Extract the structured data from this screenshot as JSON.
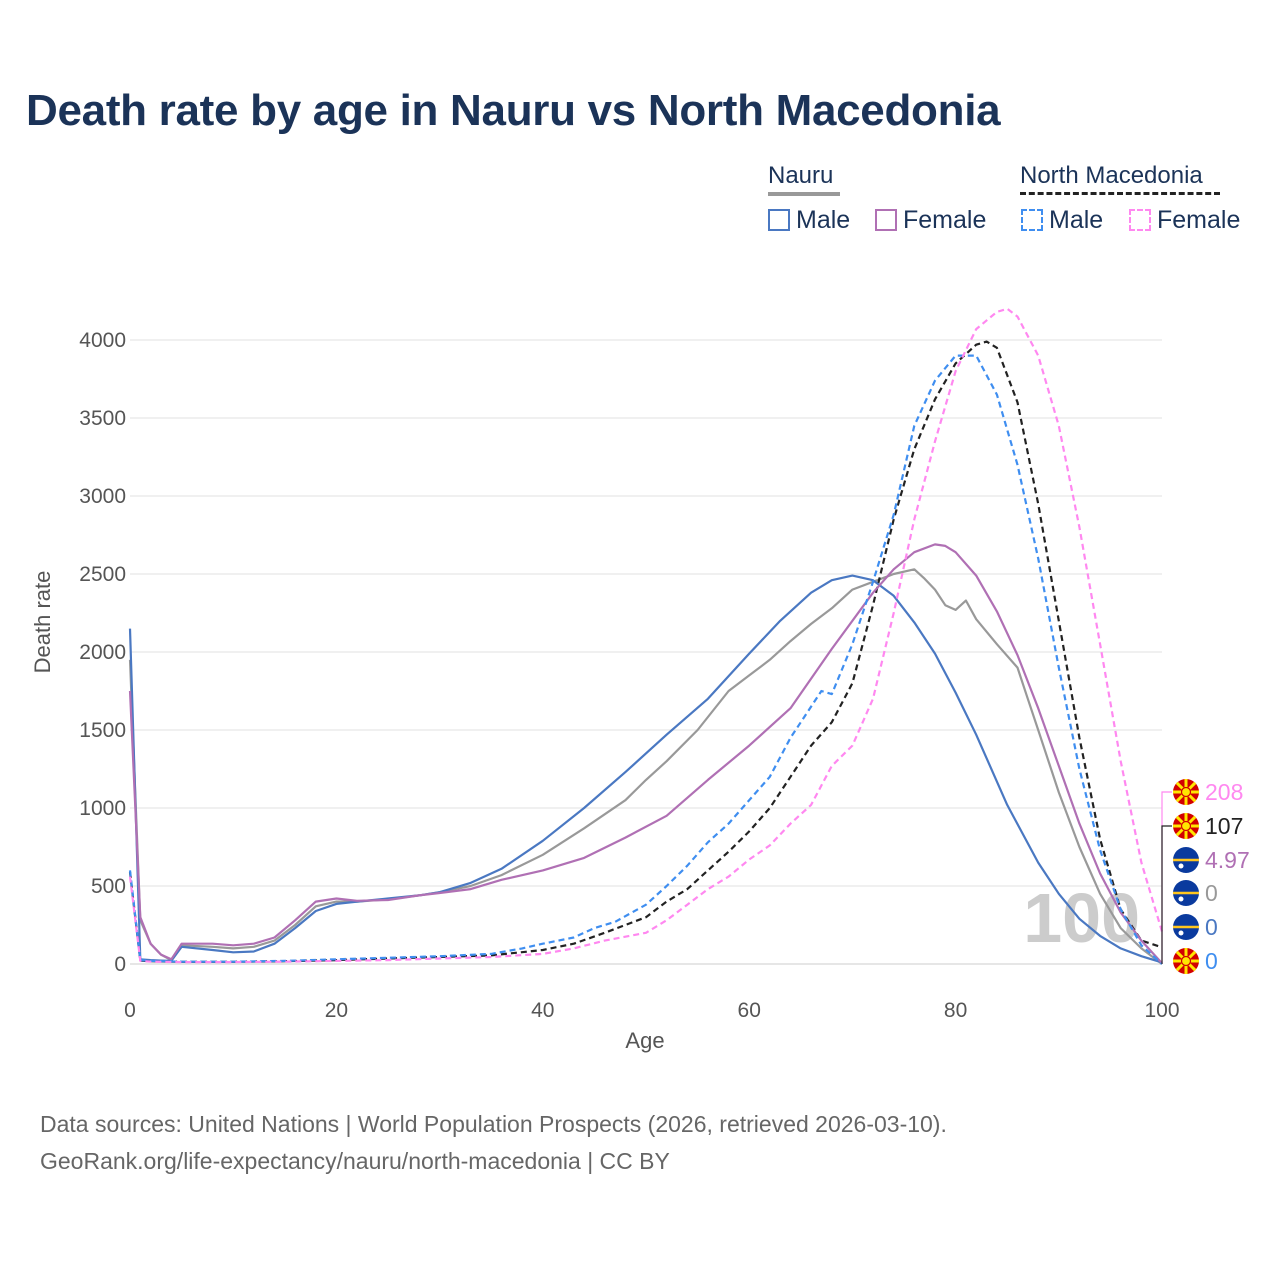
{
  "title": "Death rate by age in Nauru vs North Macedonia",
  "legend": {
    "groups": [
      {
        "name": "Nauru",
        "color": "#999999",
        "dash": "solid"
      },
      {
        "name": "North Macedonia",
        "color": "#222222",
        "dash": "dashed"
      }
    ],
    "items": [
      {
        "label": "Male",
        "color": "#4a78c2",
        "dash": "solid"
      },
      {
        "label": "Female",
        "color": "#b070b4",
        "dash": "solid"
      },
      {
        "label": "Male",
        "color": "#3f8ef0",
        "dash": "dashed"
      },
      {
        "label": "Female",
        "color": "#ff88f0",
        "dash": "dashed"
      }
    ]
  },
  "year_watermark": "100",
  "end_labels": [
    {
      "text": "208",
      "color": "#ff88f0",
      "flag": "north-macedonia"
    },
    {
      "text": "107",
      "color": "#222222",
      "flag": "north-macedonia"
    },
    {
      "text": "4.97",
      "color": "#b070b4",
      "flag": "nauru"
    },
    {
      "text": "0",
      "color": "#999999",
      "flag": "nauru"
    },
    {
      "text": "0",
      "color": "#4a78c2",
      "flag": "nauru"
    },
    {
      "text": "0",
      "color": "#3f8ef0",
      "flag": "north-macedonia"
    }
  ],
  "source": {
    "line1": "Data sources: United Nations | World Population Prospects (2026, retrieved 2026-03-10).",
    "line2": "GeoRank.org/life-expectancy/nauru/north-macedonia | CC BY"
  },
  "chart_data": {
    "type": "line",
    "title": "Death rate by age in Nauru vs North Macedonia",
    "xlabel": "Age",
    "ylabel": "Death rate",
    "xlim": [
      0,
      100
    ],
    "ylim": [
      0,
      4000
    ],
    "xticks": [
      0,
      20,
      40,
      60,
      80,
      100
    ],
    "yticks": [
      0,
      500,
      1000,
      1500,
      2000,
      2500,
      3000,
      3500,
      4000
    ],
    "grid": true,
    "series": [
      {
        "name": "Nauru Male",
        "color": "#4a78c2",
        "dash": "solid",
        "x": [
          0,
          1,
          2,
          3,
          4,
          5,
          8,
          10,
          12,
          14,
          16,
          18,
          20,
          22,
          25,
          28,
          30,
          33,
          36,
          40,
          44,
          48,
          52,
          56,
          60,
          63,
          66,
          68,
          70,
          72,
          74,
          76,
          78,
          80,
          82,
          85,
          88,
          90,
          92,
          94,
          96,
          98,
          100
        ],
        "y": [
          2150,
          30,
          25,
          22,
          20,
          110,
          90,
          75,
          80,
          130,
          230,
          340,
          385,
          400,
          420,
          440,
          460,
          520,
          610,
          790,
          1000,
          1230,
          1470,
          1700,
          1990,
          2200,
          2380,
          2460,
          2490,
          2460,
          2360,
          2190,
          1990,
          1740,
          1470,
          1020,
          650,
          450,
          290,
          180,
          100,
          50,
          10
        ]
      },
      {
        "name": "Nauru Female",
        "color": "#b070b4",
        "dash": "solid",
        "x": [
          0,
          1,
          2,
          3,
          4,
          5,
          8,
          10,
          12,
          14,
          16,
          18,
          20,
          22,
          25,
          28,
          30,
          33,
          36,
          40,
          44,
          48,
          52,
          56,
          60,
          64,
          68,
          72,
          74,
          76,
          78,
          79,
          80,
          82,
          84,
          86,
          88,
          90,
          92,
          94,
          96,
          98,
          100
        ],
        "y": [
          1750,
          300,
          130,
          60,
          30,
          130,
          130,
          120,
          130,
          170,
          280,
          400,
          420,
          405,
          410,
          440,
          455,
          480,
          540,
          600,
          680,
          810,
          950,
          1180,
          1400,
          1640,
          2020,
          2380,
          2530,
          2640,
          2690,
          2680,
          2640,
          2490,
          2260,
          1980,
          1640,
          1270,
          900,
          580,
          330,
          150,
          5
        ]
      },
      {
        "name": "North Macedonia Male",
        "color": "#3f8ef0",
        "dash": "dashed",
        "x": [
          0,
          1,
          2,
          5,
          10,
          15,
          20,
          25,
          30,
          35,
          38,
          40,
          43,
          45,
          47,
          50,
          52,
          54,
          56,
          58,
          60,
          62,
          64,
          66,
          67,
          68,
          70,
          72,
          74,
          76,
          78,
          80,
          82,
          84,
          86,
          88,
          90,
          92,
          94,
          96,
          98,
          100
        ],
        "y": [
          600,
          25,
          20,
          15,
          15,
          20,
          30,
          40,
          50,
          65,
          100,
          130,
          170,
          230,
          270,
          380,
          500,
          630,
          780,
          900,
          1050,
          1200,
          1450,
          1650,
          1750,
          1730,
          2050,
          2450,
          2880,
          3450,
          3740,
          3900,
          3900,
          3650,
          3200,
          2600,
          1900,
          1250,
          730,
          350,
          120,
          0
        ]
      },
      {
        "name": "North Macedonia Female",
        "color": "#ff88f0",
        "dash": "dashed",
        "x": [
          0,
          1,
          2,
          5,
          10,
          15,
          20,
          25,
          30,
          35,
          40,
          43,
          46,
          50,
          52,
          54,
          56,
          58,
          60,
          62,
          64,
          66,
          68,
          70,
          72,
          74,
          76,
          78,
          80,
          82,
          84,
          85,
          86,
          88,
          90,
          92,
          94,
          96,
          98,
          100
        ],
        "y": [
          560,
          20,
          15,
          12,
          12,
          15,
          20,
          25,
          35,
          45,
          65,
          100,
          150,
          200,
          280,
          380,
          480,
          560,
          670,
          760,
          900,
          1020,
          1270,
          1400,
          1700,
          2250,
          2850,
          3350,
          3800,
          4070,
          4180,
          4200,
          4150,
          3900,
          3450,
          2800,
          2050,
          1300,
          650,
          208
        ]
      },
      {
        "name": "Nauru (combined)",
        "color": "#999999",
        "dash": "solid",
        "x": [
          0,
          1,
          2,
          3,
          4,
          5,
          8,
          10,
          12,
          14,
          16,
          18,
          20,
          22,
          25,
          28,
          30,
          33,
          36,
          40,
          44,
          48,
          50,
          52,
          55,
          58,
          60,
          62,
          64,
          66,
          68,
          70,
          72,
          74,
          76,
          77,
          78,
          79,
          80,
          81,
          82,
          84,
          86,
          87,
          88,
          90,
          92,
          94,
          96,
          98,
          100
        ],
        "y": [
          1950,
          280,
          130,
          60,
          25,
          120,
          110,
          100,
          110,
          150,
          250,
          370,
          400,
          400,
          415,
          440,
          460,
          500,
          570,
          700,
          870,
          1050,
          1180,
          1300,
          1500,
          1750,
          1850,
          1950,
          2070,
          2180,
          2280,
          2400,
          2450,
          2500,
          2530,
          2470,
          2400,
          2300,
          2270,
          2330,
          2210,
          2050,
          1900,
          1700,
          1500,
          1100,
          750,
          450,
          230,
          100,
          0
        ]
      },
      {
        "name": "North Macedonia (combined)",
        "color": "#222222",
        "dash": "dashed",
        "x": [
          0,
          1,
          2,
          5,
          10,
          15,
          20,
          25,
          30,
          35,
          40,
          43,
          46,
          50,
          52,
          54,
          56,
          58,
          60,
          62,
          64,
          66,
          68,
          70,
          72,
          74,
          76,
          78,
          80,
          82,
          83,
          84,
          86,
          88,
          90,
          92,
          94,
          96,
          98,
          100
        ],
        "y": [
          590,
          22,
          18,
          14,
          14,
          18,
          25,
          35,
          45,
          55,
          90,
          130,
          200,
          300,
          400,
          480,
          600,
          720,
          850,
          1000,
          1200,
          1400,
          1550,
          1800,
          2300,
          2850,
          3300,
          3620,
          3850,
          3970,
          3990,
          3950,
          3600,
          2950,
          2200,
          1450,
          800,
          350,
          150,
          107
        ]
      }
    ]
  }
}
